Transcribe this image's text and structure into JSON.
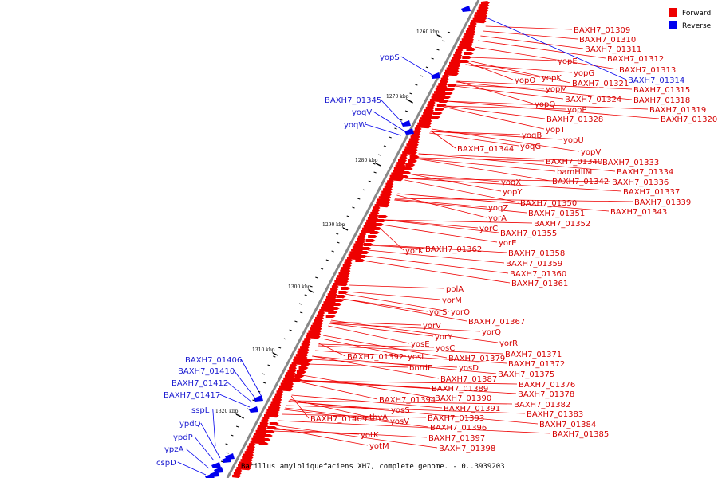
{
  "caption": "Bacillus amyloliquefaciens XH7, complete genome. - 0..3939203",
  "legend": [
    {
      "label": "Forward",
      "color": "#ee0000"
    },
    {
      "label": "Reverse",
      "color": "#0000ee"
    }
  ],
  "colors": {
    "forward": "#ee0000",
    "reverse": "#0000ee",
    "axis": "#888888"
  },
  "ticks": [
    "1260 kbp",
    "1270 kbp",
    "1280 kbp",
    "1290 kbp",
    "1300 kbp",
    "1310 kbp",
    "1320 kbp"
  ],
  "forward_labels": [
    "BAXH7_01309",
    "BAXH7_01310",
    "BAXH7_01311",
    "BAXH7_01312",
    "BAXH7_01313",
    "yopE",
    "yopG",
    "yopK",
    "yopO",
    "BAXH7_01321",
    "yopM",
    "BAXH7_01315",
    "BAXH7_01324",
    "BAXH7_01318",
    "yopQ",
    "yopP",
    "BAXH7_01319",
    "BAXH7_01328",
    "BAXH7_01320",
    "yopT",
    "yoqB",
    "yopU",
    "yoqG",
    "BAXH7_01344",
    "yopV",
    "BAXH7_01340",
    "BAXH7_01333",
    "bamHIIM",
    "BAXH7_01334",
    "BAXH7_01342",
    "BAXH7_01336",
    "yoqX",
    "BAXH7_01337",
    "yopY",
    "BAXH7_01350",
    "BAXH7_01339",
    "yoqZ",
    "BAXH7_01351",
    "BAXH7_01343",
    "yorA",
    "BAXH7_01352",
    "yorC",
    "BAXH7_01355",
    "yorE",
    "yorK",
    "BAXH7_01362",
    "BAXH7_01358",
    "BAXH7_01359",
    "BAXH7_01360",
    "BAXH7_01361",
    "polA",
    "yorM",
    "yorS",
    "yorO",
    "BAXH7_01367",
    "yorV",
    "yorQ",
    "yorY",
    "yosE",
    "yorR",
    "yosC",
    "BAXH7_01371",
    "BAXH7_01392",
    "yosI",
    "BAXH7_01379",
    "bnrdE",
    "yosD",
    "BAXH7_01372",
    "BAXH7_01375",
    "BAXH7_01387",
    "BAXH7_01376",
    "BAXH7_01389",
    "BAXH7_01378",
    "BAXH7_01394",
    "BAXH7_01390",
    "BAXH7_01382",
    "yosS",
    "BAXH7_01391",
    "thyA",
    "BAXH7_01409",
    "BAXH7_01393",
    "BAXH7_01383",
    "yosV",
    "BAXH7_01396",
    "BAXH7_01384",
    "yotK",
    "BAXH7_01397",
    "BAXH7_01385",
    "yotM",
    "BAXH7_01398"
  ],
  "reverse_labels": [
    "BAXH7_01314",
    "yopS",
    "BAXH7_01345",
    "yoqV",
    "yoqW",
    "BAXH7_01406",
    "BAXH7_01410",
    "BAXH7_01412",
    "BAXH7_01417",
    "sspL",
    "ypdQ",
    "ypdP",
    "ypzA",
    "cspD"
  ]
}
